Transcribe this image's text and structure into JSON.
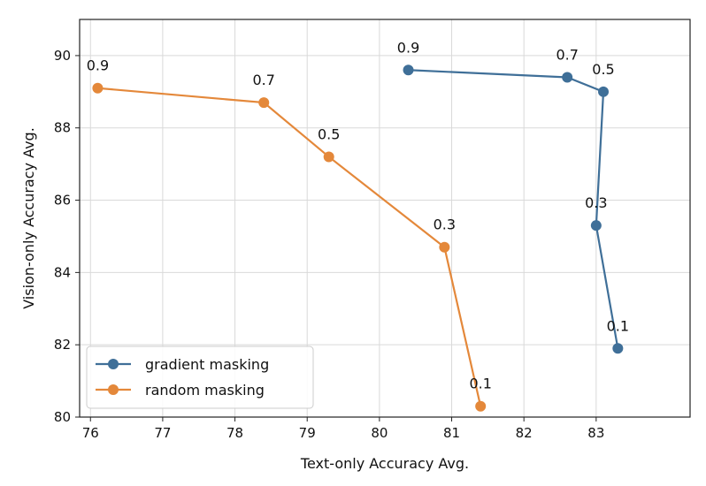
{
  "chart_data": {
    "type": "line",
    "xlabel": "Text-only Accuracy Avg.",
    "ylabel": "Vision-only Accuracy Avg.",
    "xlim": [
      75.85,
      84.3
    ],
    "ylim": [
      80,
      91.0
    ],
    "x_ticks": [
      76,
      77,
      78,
      79,
      80,
      81,
      82,
      83
    ],
    "y_ticks": [
      80,
      82,
      84,
      86,
      88,
      90
    ],
    "grid": true,
    "legend_position": "bottom-left",
    "series": [
      {
        "name": "gradient masking",
        "color": "#3f6f98",
        "points": [
          {
            "x": 80.4,
            "y": 89.6,
            "label": "0.9"
          },
          {
            "x": 82.6,
            "y": 89.4,
            "label": "0.7"
          },
          {
            "x": 83.1,
            "y": 89.0,
            "label": "0.5"
          },
          {
            "x": 83.0,
            "y": 85.3,
            "label": "0.3"
          },
          {
            "x": 83.3,
            "y": 81.9,
            "label": "0.1"
          }
        ]
      },
      {
        "name": "random masking",
        "color": "#e4883a",
        "points": [
          {
            "x": 76.1,
            "y": 89.1,
            "label": "0.9"
          },
          {
            "x": 78.4,
            "y": 88.7,
            "label": "0.7"
          },
          {
            "x": 79.3,
            "y": 87.2,
            "label": "0.5"
          },
          {
            "x": 80.9,
            "y": 84.7,
            "label": "0.3"
          },
          {
            "x": 81.4,
            "y": 80.3,
            "label": "0.1"
          }
        ]
      }
    ]
  }
}
